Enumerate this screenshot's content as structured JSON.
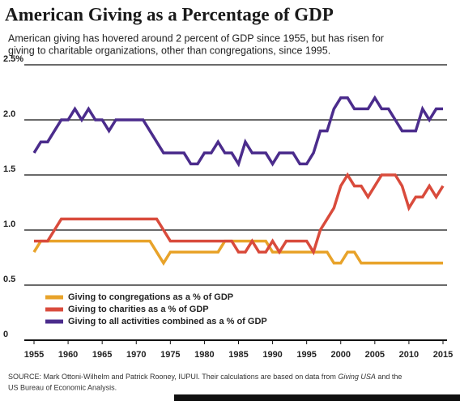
{
  "chart_data": {
    "type": "line",
    "title": "American Giving as a Percentage of GDP",
    "subtitle": [
      "American giving has hovered around 2 percent of GDP since 1955, but has risen for",
      "giving to charitable organizations, other than congregations, since 1995."
    ],
    "source": [
      "SOURCE: Mark Ottoni-Wilhelm and Patrick Rooney, IUPUI. Their calculations are based on data from ",
      "Giving USA",
      " and the",
      "US Bureau of Economic Analysis."
    ],
    "x": [
      1955,
      1956,
      1957,
      1958,
      1959,
      1960,
      1961,
      1962,
      1963,
      1964,
      1965,
      1966,
      1967,
      1968,
      1969,
      1970,
      1971,
      1972,
      1973,
      1974,
      1975,
      1976,
      1977,
      1978,
      1979,
      1980,
      1981,
      1982,
      1983,
      1984,
      1985,
      1986,
      1987,
      1988,
      1989,
      1990,
      1991,
      1992,
      1993,
      1994,
      1995,
      1996,
      1997,
      1998,
      1999,
      2000,
      2001,
      2002,
      2003,
      2004,
      2005,
      2006,
      2007,
      2008,
      2009,
      2010,
      2011,
      2012,
      2013,
      2014,
      2015
    ],
    "series": [
      {
        "name": "Giving to congregations as a % of GDP",
        "color": "#e8a32a",
        "values": [
          0.8,
          0.9,
          0.9,
          0.9,
          0.9,
          0.9,
          0.9,
          0.9,
          0.9,
          0.9,
          0.9,
          0.9,
          0.9,
          0.9,
          0.9,
          0.9,
          0.9,
          0.9,
          0.8,
          0.7,
          0.8,
          0.8,
          0.8,
          0.8,
          0.8,
          0.8,
          0.8,
          0.8,
          0.9,
          0.9,
          0.9,
          0.9,
          0.9,
          0.9,
          0.9,
          0.8,
          0.8,
          0.8,
          0.8,
          0.8,
          0.8,
          0.8,
          0.8,
          0.8,
          0.7,
          0.7,
          0.8,
          0.8,
          0.7,
          0.7,
          0.7,
          0.7,
          0.7,
          0.7,
          0.7,
          0.7,
          0.7,
          0.7,
          0.7,
          0.7,
          0.7
        ]
      },
      {
        "name": "Giving to charities as a % of GDP",
        "color": "#d94b3c",
        "values": [
          0.9,
          0.9,
          0.9,
          1.0,
          1.1,
          1.1,
          1.1,
          1.1,
          1.1,
          1.1,
          1.1,
          1.1,
          1.1,
          1.1,
          1.1,
          1.1,
          1.1,
          1.1,
          1.1,
          1.0,
          0.9,
          0.9,
          0.9,
          0.9,
          0.9,
          0.9,
          0.9,
          0.9,
          0.9,
          0.9,
          0.8,
          0.8,
          0.9,
          0.8,
          0.8,
          0.9,
          0.8,
          0.9,
          0.9,
          0.9,
          0.9,
          0.8,
          1.0,
          1.1,
          1.2,
          1.4,
          1.5,
          1.4,
          1.4,
          1.3,
          1.4,
          1.5,
          1.5,
          1.5,
          1.4,
          1.2,
          1.3,
          1.3,
          1.4,
          1.3,
          1.4
        ]
      },
      {
        "name": "Giving to all activities combined as a % of GDP",
        "color": "#4b2c8c",
        "values": [
          1.7,
          1.8,
          1.8,
          1.9,
          2.0,
          2.0,
          2.1,
          2.0,
          2.1,
          2.0,
          2.0,
          1.9,
          2.0,
          2.0,
          2.0,
          2.0,
          2.0,
          1.9,
          1.8,
          1.7,
          1.7,
          1.7,
          1.7,
          1.6,
          1.6,
          1.7,
          1.7,
          1.8,
          1.7,
          1.7,
          1.6,
          1.8,
          1.7,
          1.7,
          1.7,
          1.6,
          1.7,
          1.7,
          1.7,
          1.6,
          1.6,
          1.7,
          1.9,
          1.9,
          2.1,
          2.2,
          2.2,
          2.1,
          2.1,
          2.1,
          2.2,
          2.1,
          2.1,
          2.0,
          1.9,
          1.9,
          1.9,
          2.1,
          2.0,
          2.1,
          2.1
        ]
      }
    ],
    "xlim": [
      1955,
      2015
    ],
    "xticks": [
      1955,
      1960,
      1965,
      1970,
      1975,
      1980,
      1985,
      1990,
      1995,
      2000,
      2005,
      2010,
      2015
    ],
    "ylim": [
      0,
      2.5
    ],
    "yticks": [
      0,
      0.5,
      {
        "value": 1.0,
        "label": "1.0"
      },
      1.5,
      {
        "value": 2.0,
        "label": "2.0"
      },
      {
        "value": 2.5,
        "label": "2.5%"
      }
    ],
    "grid": true,
    "legend": "lower left"
  }
}
